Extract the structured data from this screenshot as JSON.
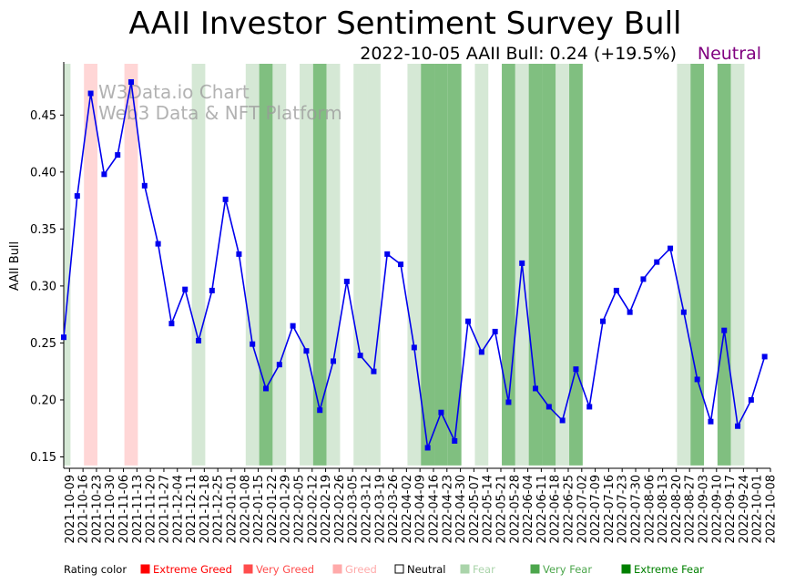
{
  "chart_data": {
    "type": "line",
    "title": "AAII Investor Sentiment Survey Bull",
    "subtitle": "2022-10-05 AAII Bull: 0.24 (+19.5%)",
    "current_rating": "Neutral",
    "current_rating_color": "#800080",
    "ylabel": "AAII Bull",
    "ylim": [
      0.14,
      0.495
    ],
    "yticks": [
      0.15,
      0.2,
      0.25,
      0.3,
      0.35,
      0.4,
      0.45
    ],
    "ytick_labels": [
      "0.15",
      "0.20",
      "0.25",
      "0.30",
      "0.35",
      "0.40",
      "0.45"
    ],
    "line_color": "#0000ee",
    "watermark": [
      "W3Data.io Chart",
      "Web3 Data & NFT Platform"
    ],
    "x": [
      "2021-10-06",
      "2021-10-13",
      "2021-10-20",
      "2021-10-27",
      "2021-11-03",
      "2021-11-10",
      "2021-11-17",
      "2021-11-24",
      "2021-12-01",
      "2021-12-08",
      "2021-12-15",
      "2021-12-22",
      "2021-12-29",
      "2022-01-05",
      "2022-01-12",
      "2022-01-19",
      "2022-01-26",
      "2022-02-02",
      "2022-02-09",
      "2022-02-16",
      "2022-02-23",
      "2022-03-02",
      "2022-03-09",
      "2022-03-16",
      "2022-03-23",
      "2022-03-30",
      "2022-04-06",
      "2022-04-13",
      "2022-04-20",
      "2022-04-27",
      "2022-05-04",
      "2022-05-11",
      "2022-05-18",
      "2022-05-25",
      "2022-06-01",
      "2022-06-08",
      "2022-06-15",
      "2022-06-22",
      "2022-06-29",
      "2022-07-06",
      "2022-07-13",
      "2022-07-20",
      "2022-07-27",
      "2022-08-03",
      "2022-08-10",
      "2022-08-17",
      "2022-08-24",
      "2022-08-31",
      "2022-09-07",
      "2022-09-14",
      "2022-09-21",
      "2022-09-28",
      "2022-10-05"
    ],
    "values": [
      0.255,
      0.379,
      0.469,
      0.398,
      0.415,
      0.479,
      0.388,
      0.337,
      0.267,
      0.297,
      0.252,
      0.296,
      0.376,
      0.328,
      0.249,
      0.21,
      0.231,
      0.265,
      0.243,
      0.191,
      0.234,
      0.304,
      0.239,
      0.225,
      0.328,
      0.319,
      0.246,
      0.158,
      0.189,
      0.164,
      0.269,
      0.242,
      0.26,
      0.198,
      0.32,
      0.21,
      0.194,
      0.182,
      0.227,
      0.194,
      0.269,
      0.296,
      0.277,
      0.306,
      0.321,
      0.333,
      0.277,
      0.218,
      0.181,
      0.261,
      0.177,
      0.2,
      0.238
    ],
    "ratings": [
      "Fear",
      "Neutral",
      "Greed",
      "Neutral",
      "Neutral",
      "Greed",
      "Neutral",
      "Neutral",
      "Neutral",
      "Neutral",
      "Fear",
      "Neutral",
      "Neutral",
      "Neutral",
      "Fear",
      "Very Fear",
      "Fear",
      "Neutral",
      "Fear",
      "Very Fear",
      "Fear",
      "Neutral",
      "Fear",
      "Fear",
      "Neutral",
      "Neutral",
      "Fear",
      "Very Fear",
      "Very Fear",
      "Very Fear",
      "Neutral",
      "Fear",
      "Neutral",
      "Very Fear",
      "Fear",
      "Very Fear",
      "Very Fear",
      "Fear",
      "Very Fear",
      "Neutral",
      "Neutral",
      "Neutral",
      "Neutral",
      "Neutral",
      "Neutral",
      "Neutral",
      "Fear",
      "Very Fear",
      "Neutral",
      "Very Fear",
      "Fear",
      "Neutral",
      "Neutral"
    ],
    "xtick_labels": [
      "2021-10-09",
      "2021-10-16",
      "2021-10-23",
      "2021-10-30",
      "2021-11-06",
      "2021-11-13",
      "2021-11-20",
      "2021-11-27",
      "2021-12-04",
      "2021-12-11",
      "2021-12-18",
      "2021-12-25",
      "2022-01-01",
      "2022-01-08",
      "2022-01-15",
      "2022-01-22",
      "2022-01-29",
      "2022-02-05",
      "2022-02-12",
      "2022-02-19",
      "2022-02-26",
      "2022-03-05",
      "2022-03-12",
      "2022-03-19",
      "2022-03-26",
      "2022-04-02",
      "2022-04-09",
      "2022-04-16",
      "2022-04-23",
      "2022-04-30",
      "2022-05-07",
      "2022-05-14",
      "2022-05-21",
      "2022-05-28",
      "2022-06-04",
      "2022-06-11",
      "2022-06-18",
      "2022-06-25",
      "2022-07-02",
      "2022-07-09",
      "2022-07-16",
      "2022-07-23",
      "2022-07-30",
      "2022-08-06",
      "2022-08-13",
      "2022-08-20",
      "2022-08-27",
      "2022-09-03",
      "2022-09-10",
      "2022-09-17",
      "2022-09-24",
      "2022-10-01",
      "2022-10-08"
    ],
    "legend": {
      "label": "Rating color",
      "items": [
        {
          "name": "Extreme Greed",
          "color": "#ff0000",
          "text_color": "#ff0000"
        },
        {
          "name": "Very Greed",
          "color": "#ff4d4d",
          "text_color": "#ff4d4d"
        },
        {
          "name": "Greed",
          "color": "#ffaaaa",
          "text_color": "#ffaaaa"
        },
        {
          "name": "Neutral",
          "color": "#ffffff",
          "text_color": "#000000"
        },
        {
          "name": "Fear",
          "color": "#aad4aa",
          "text_color": "#aad4aa"
        },
        {
          "name": "Very Fear",
          "color": "#4ca64c",
          "text_color": "#4ca64c"
        },
        {
          "name": "Extreme Fear",
          "color": "#008000",
          "text_color": "#008000"
        }
      ]
    },
    "rating_colors": {
      "Greed": "#ffd6d6",
      "Fear": "#d5e8d5",
      "Very Fear": "#80bf80",
      "Neutral": "none"
    }
  }
}
